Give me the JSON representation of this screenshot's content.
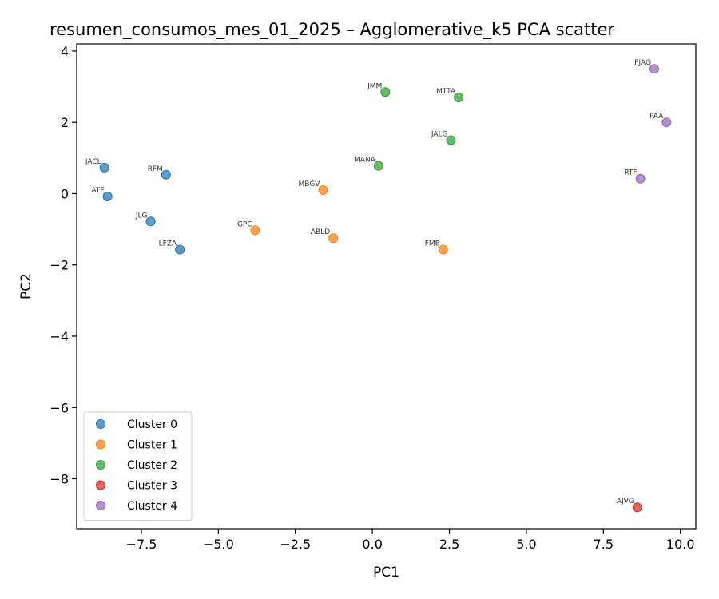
{
  "chart_data": {
    "type": "scatter",
    "title": "resumen_consumos_mes_01_2025 – Agglomerative_k5 PCA scatter",
    "xlabel": "PC1",
    "ylabel": "PC2",
    "xlim": [
      -9.6,
      10.5
    ],
    "ylim": [
      -9.4,
      4.2
    ],
    "xticks": [
      -7.5,
      -5.0,
      -2.5,
      0.0,
      2.5,
      5.0,
      7.5,
      10.0
    ],
    "xtick_labels": [
      "−7.5",
      "−5.0",
      "−2.5",
      "0.0",
      "2.5",
      "5.0",
      "7.5",
      "10.0"
    ],
    "yticks": [
      -8,
      -6,
      -4,
      -2,
      0,
      2,
      4
    ],
    "ytick_labels": [
      "−8",
      "−6",
      "−4",
      "−2",
      "0",
      "2",
      "4"
    ],
    "grid": false,
    "legend_position": "lower-left",
    "series": [
      {
        "name": "Cluster 0",
        "color": "#1f77b4",
        "points": [
          {
            "label": "JACL",
            "x": -8.7,
            "y": 0.73
          },
          {
            "label": "ATF",
            "x": -8.6,
            "y": -0.08
          },
          {
            "label": "RFM",
            "x": -6.7,
            "y": 0.53
          },
          {
            "label": "JLG",
            "x": -7.2,
            "y": -0.78
          },
          {
            "label": "LFZA",
            "x": -6.25,
            "y": -1.57
          }
        ]
      },
      {
        "name": "Cluster 1",
        "color": "#ff7f0e",
        "points": [
          {
            "label": "GPC",
            "x": -3.8,
            "y": -1.03
          },
          {
            "label": "MBGV",
            "x": -1.6,
            "y": 0.1
          },
          {
            "label": "ABLD",
            "x": -1.27,
            "y": -1.25
          },
          {
            "label": "FMB",
            "x": 2.3,
            "y": -1.57
          }
        ]
      },
      {
        "name": "Cluster 2",
        "color": "#2ca02c",
        "points": [
          {
            "label": "JMM",
            "x": 0.42,
            "y": 2.85
          },
          {
            "label": "MTTA",
            "x": 2.8,
            "y": 2.7
          },
          {
            "label": "JALG",
            "x": 2.55,
            "y": 1.5
          },
          {
            "label": "MANA",
            "x": 0.2,
            "y": 0.78
          }
        ]
      },
      {
        "name": "Cluster 3",
        "color": "#d62728",
        "points": [
          {
            "label": "AJVG",
            "x": 8.6,
            "y": -8.8
          }
        ]
      },
      {
        "name": "Cluster 4",
        "color": "#9467bd",
        "points": [
          {
            "label": "FJAG",
            "x": 9.15,
            "y": 3.5
          },
          {
            "label": "PAA",
            "x": 9.55,
            "y": 2.0
          },
          {
            "label": "RTF",
            "x": 8.7,
            "y": 0.42
          }
        ]
      }
    ]
  }
}
